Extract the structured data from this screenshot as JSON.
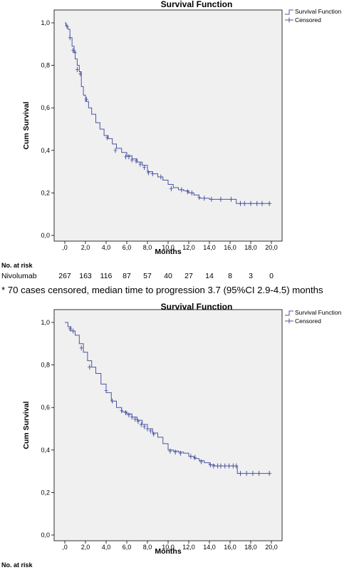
{
  "chart_data": [
    {
      "type": "line",
      "title": "Survival Function",
      "xlabel": "Months",
      "ylabel": "Cum Survival",
      "xlim": [
        0,
        20
      ],
      "ylim": [
        0,
        1
      ],
      "xticks": [
        ",0",
        "2,0",
        "4,0",
        "6,0",
        "8,0",
        "10,0",
        "12,0",
        "14,0",
        "16,0",
        "18,0",
        "20,0"
      ],
      "yticks": [
        "0,0",
        "0,2",
        "0,4",
        "0,6",
        "0,8",
        "1,0"
      ],
      "legend": [
        "Survival Function",
        "Censored"
      ],
      "legend_position": "top-right",
      "grid": false,
      "series": [
        {
          "name": "Survival Function",
          "x": [
            0,
            0.1,
            0.3,
            0.5,
            0.7,
            0.9,
            1.0,
            1.2,
            1.4,
            1.6,
            1.8,
            2.0,
            2.3,
            2.6,
            3.0,
            3.4,
            3.8,
            4.2,
            4.6,
            5.0,
            5.5,
            6.0,
            6.5,
            7.0,
            7.5,
            8.0,
            8.5,
            9.0,
            9.5,
            10.0,
            10.5,
            11.0,
            11.5,
            12.0,
            12.5,
            13.0,
            14.0,
            15.0,
            16.0,
            16.6,
            17.0,
            18.0,
            20.0
          ],
          "y": [
            1.0,
            0.985,
            0.97,
            0.93,
            0.89,
            0.86,
            0.83,
            0.8,
            0.77,
            0.7,
            0.66,
            0.63,
            0.6,
            0.57,
            0.53,
            0.5,
            0.47,
            0.455,
            0.43,
            0.41,
            0.39,
            0.375,
            0.36,
            0.345,
            0.33,
            0.3,
            0.29,
            0.275,
            0.26,
            0.24,
            0.225,
            0.215,
            0.21,
            0.2,
            0.19,
            0.175,
            0.17,
            0.17,
            0.17,
            0.15,
            0.15,
            0.15,
            0.15
          ]
        },
        {
          "name": "Censored",
          "x": [
            0.2,
            0.5,
            0.8,
            1.0,
            1.2,
            1.5,
            2.1,
            4.1,
            4.9,
            5.9,
            6.2,
            6.5,
            6.9,
            7.3,
            7.7,
            8.1,
            8.5,
            9.3,
            10.3,
            11.3,
            11.9,
            12.3,
            13.0,
            13.5,
            14.2,
            15.1,
            16.1,
            17.0,
            17.4,
            18.0,
            18.6,
            19.1,
            19.8
          ],
          "y": [
            0.985,
            0.93,
            0.87,
            0.86,
            0.78,
            0.76,
            0.64,
            0.46,
            0.4,
            0.37,
            0.37,
            0.355,
            0.35,
            0.335,
            0.32,
            0.295,
            0.29,
            0.275,
            0.22,
            0.215,
            0.205,
            0.2,
            0.18,
            0.175,
            0.17,
            0.17,
            0.17,
            0.15,
            0.15,
            0.15,
            0.15,
            0.15,
            0.15
          ]
        }
      ],
      "risk_table": {
        "header": "No. at risk",
        "row_label": "Nivolumab",
        "values": [
          267,
          163,
          116,
          87,
          57,
          40,
          27,
          14,
          8,
          3,
          0
        ]
      },
      "footnote": "* 70 cases censored, median time to progression 3.7 (95%CI 2.9-4.5) months"
    },
    {
      "type": "line",
      "title": "Survival Function",
      "xlabel": "Months",
      "ylabel": "Cum Survival",
      "xlim": [
        0,
        20
      ],
      "ylim": [
        0,
        1
      ],
      "xticks": [
        ",0",
        "2,0",
        "4,0",
        "6,0",
        "8,0",
        "10,0",
        "12,0",
        "14,0",
        "16,0",
        "18,0",
        "20,0"
      ],
      "yticks": [
        "0,0",
        "0,2",
        "0,4",
        "0,6",
        "0,8",
        "1,0"
      ],
      "legend": [
        "Survival Function",
        "Censored"
      ],
      "legend_position": "top-right",
      "grid": false,
      "series": [
        {
          "name": "Survival Function",
          "x": [
            0,
            0.3,
            0.6,
            1.0,
            1.4,
            1.8,
            2.2,
            2.6,
            3.0,
            3.5,
            4.0,
            4.5,
            5.0,
            5.5,
            6.0,
            6.5,
            7.0,
            7.5,
            8.0,
            8.5,
            9.0,
            9.5,
            10.0,
            10.5,
            11.0,
            11.5,
            12.0,
            12.5,
            13.0,
            13.5,
            14.0,
            14.5,
            15.0,
            16.0,
            16.7,
            17.0,
            18.0,
            20.0
          ],
          "y": [
            1.0,
            0.98,
            0.96,
            0.94,
            0.9,
            0.86,
            0.82,
            0.79,
            0.76,
            0.71,
            0.67,
            0.63,
            0.6,
            0.58,
            0.57,
            0.555,
            0.54,
            0.52,
            0.5,
            0.48,
            0.46,
            0.43,
            0.4,
            0.395,
            0.39,
            0.385,
            0.37,
            0.36,
            0.35,
            0.34,
            0.33,
            0.325,
            0.325,
            0.325,
            0.29,
            0.29,
            0.29,
            0.29
          ]
        },
        {
          "name": "Censored",
          "x": [
            0.5,
            0.8,
            1.6,
            2.4,
            4.0,
            4.6,
            5.5,
            5.9,
            6.2,
            6.5,
            6.8,
            7.1,
            7.4,
            7.7,
            8.0,
            8.3,
            8.6,
            10.2,
            10.7,
            11.2,
            12.2,
            12.6,
            13.2,
            14.1,
            14.4,
            14.8,
            15.1,
            15.5,
            15.9,
            16.3,
            16.6,
            17.0,
            17.6,
            18.2,
            18.8,
            19.8
          ],
          "y": [
            0.97,
            0.96,
            0.88,
            0.79,
            0.68,
            0.63,
            0.585,
            0.575,
            0.565,
            0.555,
            0.545,
            0.535,
            0.52,
            0.51,
            0.5,
            0.49,
            0.475,
            0.395,
            0.39,
            0.385,
            0.37,
            0.365,
            0.345,
            0.33,
            0.325,
            0.325,
            0.325,
            0.325,
            0.325,
            0.325,
            0.325,
            0.29,
            0.29,
            0.29,
            0.29,
            0.29
          ]
        }
      ],
      "risk_table": {
        "header": "No. at risk"
      }
    }
  ]
}
